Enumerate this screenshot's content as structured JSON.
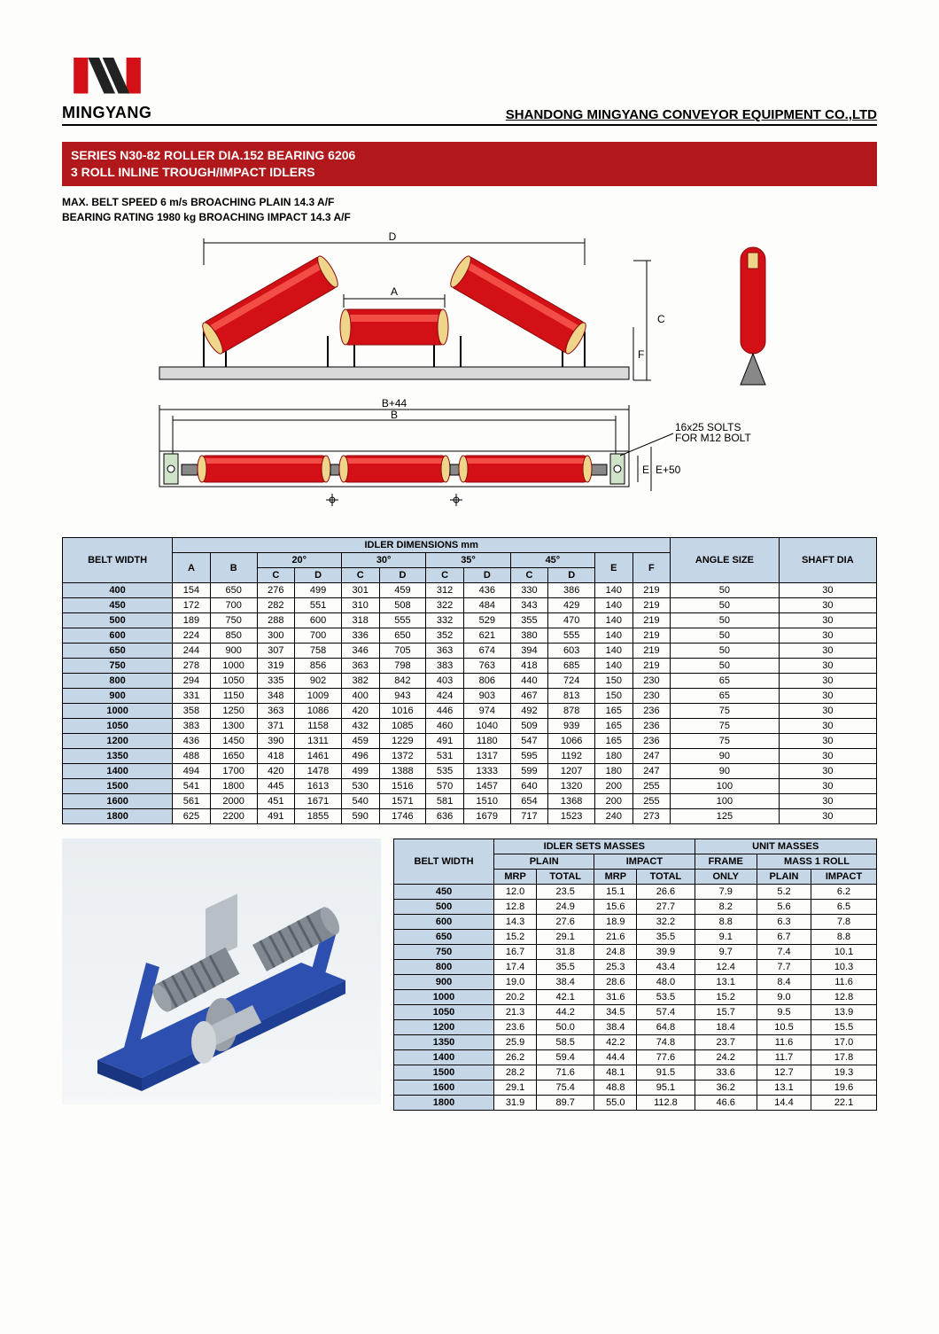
{
  "header": {
    "brand": "MINGYANG",
    "company": "SHANDONG MINGYANG CONVEYOR EQUIPMENT CO.,LTD"
  },
  "title": {
    "line1": "SERIES N30-82 ROLLER DIA.152 BEARING 6206",
    "line2": "3 ROLL INLINE TROUGH/IMPACT IDLERS"
  },
  "specs": {
    "line1": "MAX. BELT SPEED 6 m/s BROACHING PLAIN 14.3 A/F",
    "line2": "BEARING RATING 1980 kg BROACHING IMPACT 14.3 A/F"
  },
  "diagram": {
    "label_D": "D",
    "label_A": "A",
    "label_C": "C",
    "label_F": "F",
    "label_B44": "B+44",
    "label_B": "B",
    "label_E": "E",
    "label_E50": "E+50",
    "note1": "16x25 SOLTS",
    "note2": "FOR M12 BOLT",
    "roller_color": "#d31016",
    "roller_highlight": "#ff5a4a",
    "roller_end": "#efd58a",
    "frame_color": "#6b6b6b",
    "base_color": "#c7c7c7"
  },
  "dim_table": {
    "title": "IDLER DIMENSIONS mm",
    "belt_width": "BELT WIDTH",
    "angle_size": "ANGLE SIZE",
    "shaft_dia": "SHAFT DIA",
    "col_A": "A",
    "col_B": "B",
    "col_C": "C",
    "col_D": "D",
    "col_E": "E",
    "col_F": "F",
    "a20": "20°",
    "a30": "30°",
    "a35": "35°",
    "a45": "45°",
    "rows": [
      [
        "400",
        154,
        650,
        276,
        499,
        301,
        459,
        312,
        436,
        330,
        386,
        140,
        219,
        50,
        30
      ],
      [
        "450",
        172,
        700,
        282,
        551,
        310,
        508,
        322,
        484,
        343,
        429,
        140,
        219,
        50,
        30
      ],
      [
        "500",
        189,
        750,
        288,
        600,
        318,
        555,
        332,
        529,
        355,
        470,
        140,
        219,
        50,
        30
      ],
      [
        "600",
        224,
        850,
        300,
        700,
        336,
        650,
        352,
        621,
        380,
        555,
        140,
        219,
        50,
        30
      ],
      [
        "650",
        244,
        900,
        307,
        758,
        346,
        705,
        363,
        674,
        394,
        603,
        140,
        219,
        50,
        30
      ],
      [
        "750",
        278,
        1000,
        319,
        856,
        363,
        798,
        383,
        763,
        418,
        685,
        140,
        219,
        50,
        30
      ],
      [
        "800",
        294,
        1050,
        335,
        902,
        382,
        842,
        403,
        806,
        440,
        724,
        150,
        230,
        65,
        30
      ],
      [
        "900",
        331,
        1150,
        348,
        1009,
        400,
        943,
        424,
        903,
        467,
        813,
        150,
        230,
        65,
        30
      ],
      [
        "1000",
        358,
        1250,
        363,
        1086,
        420,
        1016,
        446,
        974,
        492,
        878,
        165,
        236,
        75,
        30
      ],
      [
        "1050",
        383,
        1300,
        371,
        1158,
        432,
        1085,
        460,
        1040,
        509,
        939,
        165,
        236,
        75,
        30
      ],
      [
        "1200",
        436,
        1450,
        390,
        1311,
        459,
        1229,
        491,
        1180,
        547,
        1066,
        165,
        236,
        75,
        30
      ],
      [
        "1350",
        488,
        1650,
        418,
        1461,
        496,
        1372,
        531,
        1317,
        595,
        1192,
        180,
        247,
        90,
        30
      ],
      [
        "1400",
        494,
        1700,
        420,
        1478,
        499,
        1388,
        535,
        1333,
        599,
        1207,
        180,
        247,
        90,
        30
      ],
      [
        "1500",
        541,
        1800,
        445,
        1613,
        530,
        1516,
        570,
        1457,
        640,
        1320,
        200,
        255,
        100,
        30
      ],
      [
        "1600",
        561,
        2000,
        451,
        1671,
        540,
        1571,
        581,
        1510,
        654,
        1368,
        200,
        255,
        100,
        30
      ],
      [
        "1800",
        625,
        2200,
        491,
        1855,
        590,
        1746,
        636,
        1679,
        717,
        1523,
        240,
        273,
        125,
        30
      ]
    ]
  },
  "mass_table": {
    "belt_width": "BELT WIDTH",
    "sets": "IDLER SETS MASSES",
    "unit": "UNIT MASSES",
    "plain": "PLAIN",
    "impact": "IMPACT",
    "frame": "FRAME",
    "mass1": "MASS 1 ROLL",
    "mrp": "MRP",
    "total": "TOTAL",
    "only": "ONLY",
    "rows": [
      [
        "450",
        "12.0",
        "23.5",
        "15.1",
        "26.6",
        "7.9",
        "5.2",
        "6.2"
      ],
      [
        "500",
        "12.8",
        "24.9",
        "15.6",
        "27.7",
        "8.2",
        "5.6",
        "6.5"
      ],
      [
        "600",
        "14.3",
        "27.6",
        "18.9",
        "32.2",
        "8.8",
        "6.3",
        "7.8"
      ],
      [
        "650",
        "15.2",
        "29.1",
        "21.6",
        "35.5",
        "9.1",
        "6.7",
        "8.8"
      ],
      [
        "750",
        "16.7",
        "31.8",
        "24.8",
        "39.9",
        "9.7",
        "7.4",
        "10.1"
      ],
      [
        "800",
        "17.4",
        "35.5",
        "25.3",
        "43.4",
        "12.4",
        "7.7",
        "10.3"
      ],
      [
        "900",
        "19.0",
        "38.4",
        "28.6",
        "48.0",
        "13.1",
        "8.4",
        "11.6"
      ],
      [
        "1000",
        "20.2",
        "42.1",
        "31.6",
        "53.5",
        "15.2",
        "9.0",
        "12.8"
      ],
      [
        "1050",
        "21.3",
        "44.2",
        "34.5",
        "57.4",
        "15.7",
        "9.5",
        "13.9"
      ],
      [
        "1200",
        "23.6",
        "50.0",
        "38.4",
        "64.8",
        "18.4",
        "10.5",
        "15.5"
      ],
      [
        "1350",
        "25.9",
        "58.5",
        "42.2",
        "74.8",
        "23.7",
        "11.6",
        "17.0"
      ],
      [
        "1400",
        "26.2",
        "59.4",
        "44.4",
        "77.6",
        "24.2",
        "11.7",
        "17.8"
      ],
      [
        "1500",
        "28.2",
        "71.6",
        "48.1",
        "91.5",
        "33.6",
        "12.7",
        "19.3"
      ],
      [
        "1600",
        "29.1",
        "75.4",
        "48.8",
        "95.1",
        "36.2",
        "13.1",
        "19.6"
      ],
      [
        "1800",
        "31.9",
        "89.7",
        "55.0",
        "112.8",
        "46.6",
        "14.4",
        "22.1"
      ]
    ]
  },
  "render_colors": {
    "frame": "#2d4fb0",
    "roller_steel": "#b8bfc5",
    "roller_impact": "#808891"
  }
}
